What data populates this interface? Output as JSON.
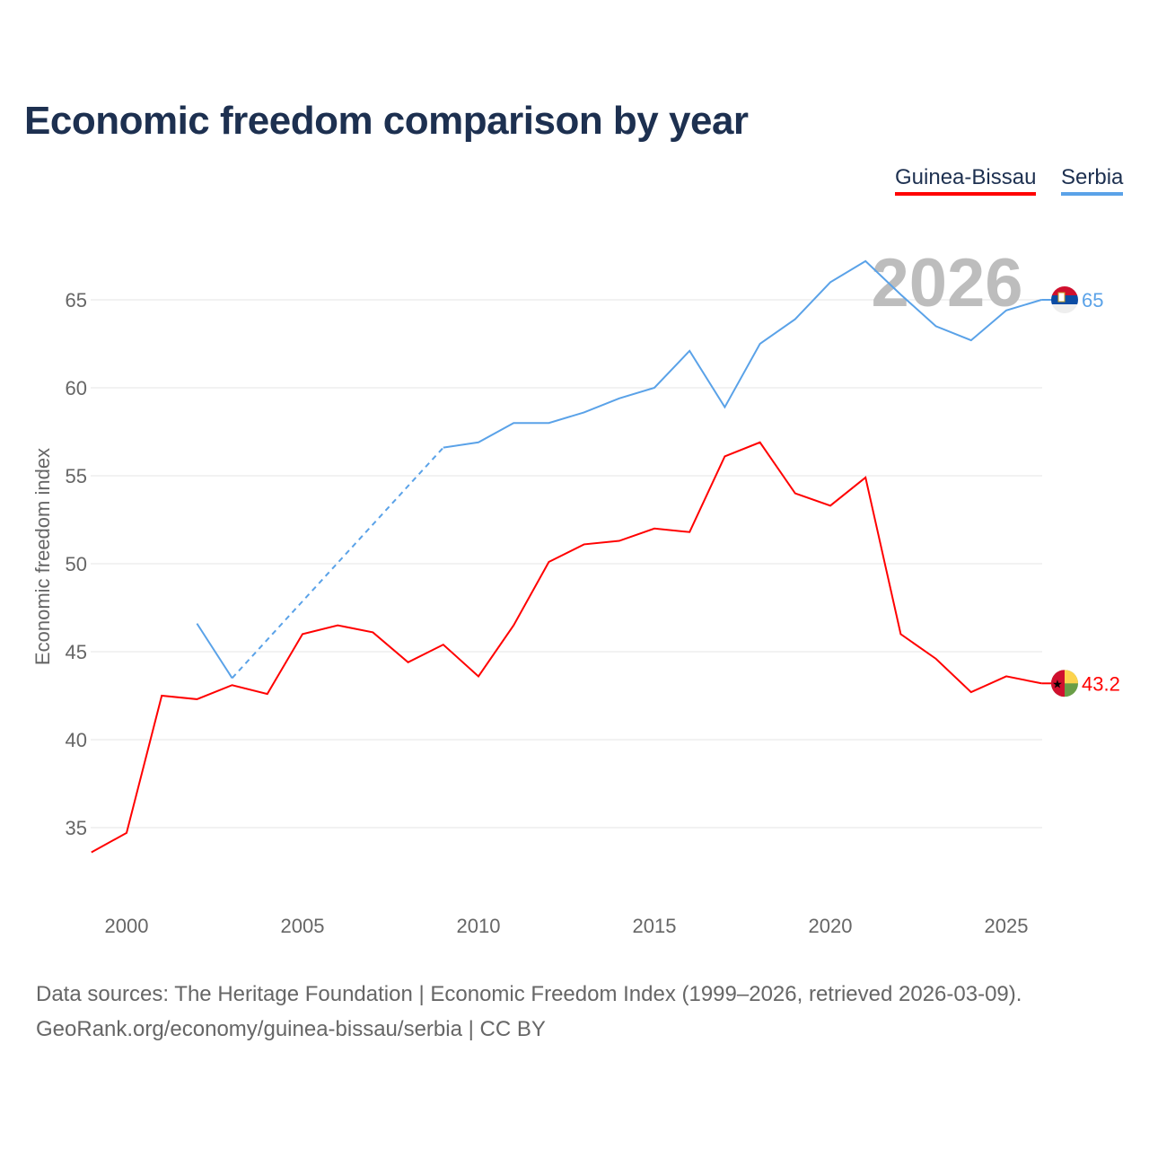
{
  "chart_data": {
    "type": "line",
    "title": "Economic freedom comparison by year",
    "xlabel": "",
    "ylabel": "Economic freedom index",
    "xlim": [
      1999,
      2026
    ],
    "ylim": [
      31.5,
      68
    ],
    "x_ticks": [
      "2000",
      "2005",
      "2010",
      "2015",
      "2020",
      "2025"
    ],
    "y_ticks": [
      "35",
      "40",
      "45",
      "50",
      "55",
      "60",
      "65"
    ],
    "grid": true,
    "legend_placement": "top-right",
    "year_watermark": "2026",
    "series": [
      {
        "name": "Guinea-Bissau",
        "color": "#ff0000",
        "end_label": "43.2",
        "flag": "guinea-bissau-flag",
        "points": [
          [
            1999,
            33.6
          ],
          [
            2000,
            34.7
          ],
          [
            2001,
            42.5
          ],
          [
            2002,
            42.3
          ],
          [
            2003,
            43.1
          ],
          [
            2004,
            42.6
          ],
          [
            2005,
            46.0
          ],
          [
            2006,
            46.5
          ],
          [
            2007,
            46.1
          ],
          [
            2008,
            44.4
          ],
          [
            2009,
            45.4
          ],
          [
            2010,
            43.6
          ],
          [
            2011,
            46.5
          ],
          [
            2012,
            50.1
          ],
          [
            2013,
            51.1
          ],
          [
            2014,
            51.3
          ],
          [
            2015,
            52.0
          ],
          [
            2016,
            51.8
          ],
          [
            2017,
            56.1
          ],
          [
            2018,
            56.9
          ],
          [
            2019,
            54.0
          ],
          [
            2020,
            53.3
          ],
          [
            2021,
            54.9
          ],
          [
            2022,
            46.0
          ],
          [
            2023,
            44.6
          ],
          [
            2024,
            42.7
          ],
          [
            2025,
            43.6
          ],
          [
            2026,
            43.2
          ]
        ]
      },
      {
        "name": "Serbia",
        "color": "#5aa2e8",
        "end_label": "65",
        "flag": "serbia-flag",
        "points": [
          [
            2002,
            46.6
          ],
          [
            2003,
            43.5
          ],
          [
            2009,
            56.6
          ],
          [
            2010,
            56.9
          ],
          [
            2011,
            58.0
          ],
          [
            2012,
            58.0
          ],
          [
            2013,
            58.6
          ],
          [
            2014,
            59.4
          ],
          [
            2015,
            60.0
          ],
          [
            2016,
            62.1
          ],
          [
            2017,
            58.9
          ],
          [
            2018,
            62.5
          ],
          [
            2019,
            63.9
          ],
          [
            2020,
            66.0
          ],
          [
            2021,
            67.2
          ],
          [
            2022,
            65.3
          ],
          [
            2023,
            63.5
          ],
          [
            2024,
            62.7
          ],
          [
            2025,
            64.4
          ],
          [
            2026,
            65.0
          ]
        ],
        "gap_after": 2003
      }
    ]
  },
  "footer": {
    "line1": "Data sources: The Heritage Foundation | Economic Freedom Index (1999–2026, retrieved 2026-03-09).",
    "line2": "GeoRank.org/economy/guinea-bissau/serbia | CC BY"
  }
}
